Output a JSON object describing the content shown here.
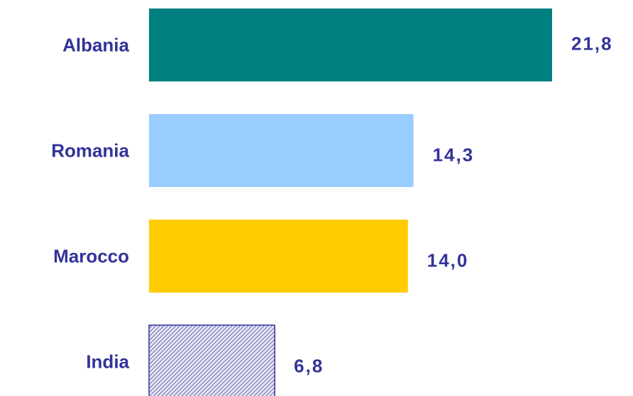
{
  "chart_data": {
    "type": "bar",
    "orientation": "horizontal",
    "categories": [
      "Albania",
      "Romania",
      "Marocco",
      "India"
    ],
    "values": [
      21.8,
      14.3,
      14.0,
      6.8
    ],
    "value_labels": [
      "21,8",
      "14,3",
      "14,0",
      "6,8"
    ],
    "colors": [
      "#008080",
      "#99ccff",
      "#ffcc00",
      "#333399"
    ],
    "patterns": [
      null,
      null,
      null,
      "hatch"
    ]
  }
}
